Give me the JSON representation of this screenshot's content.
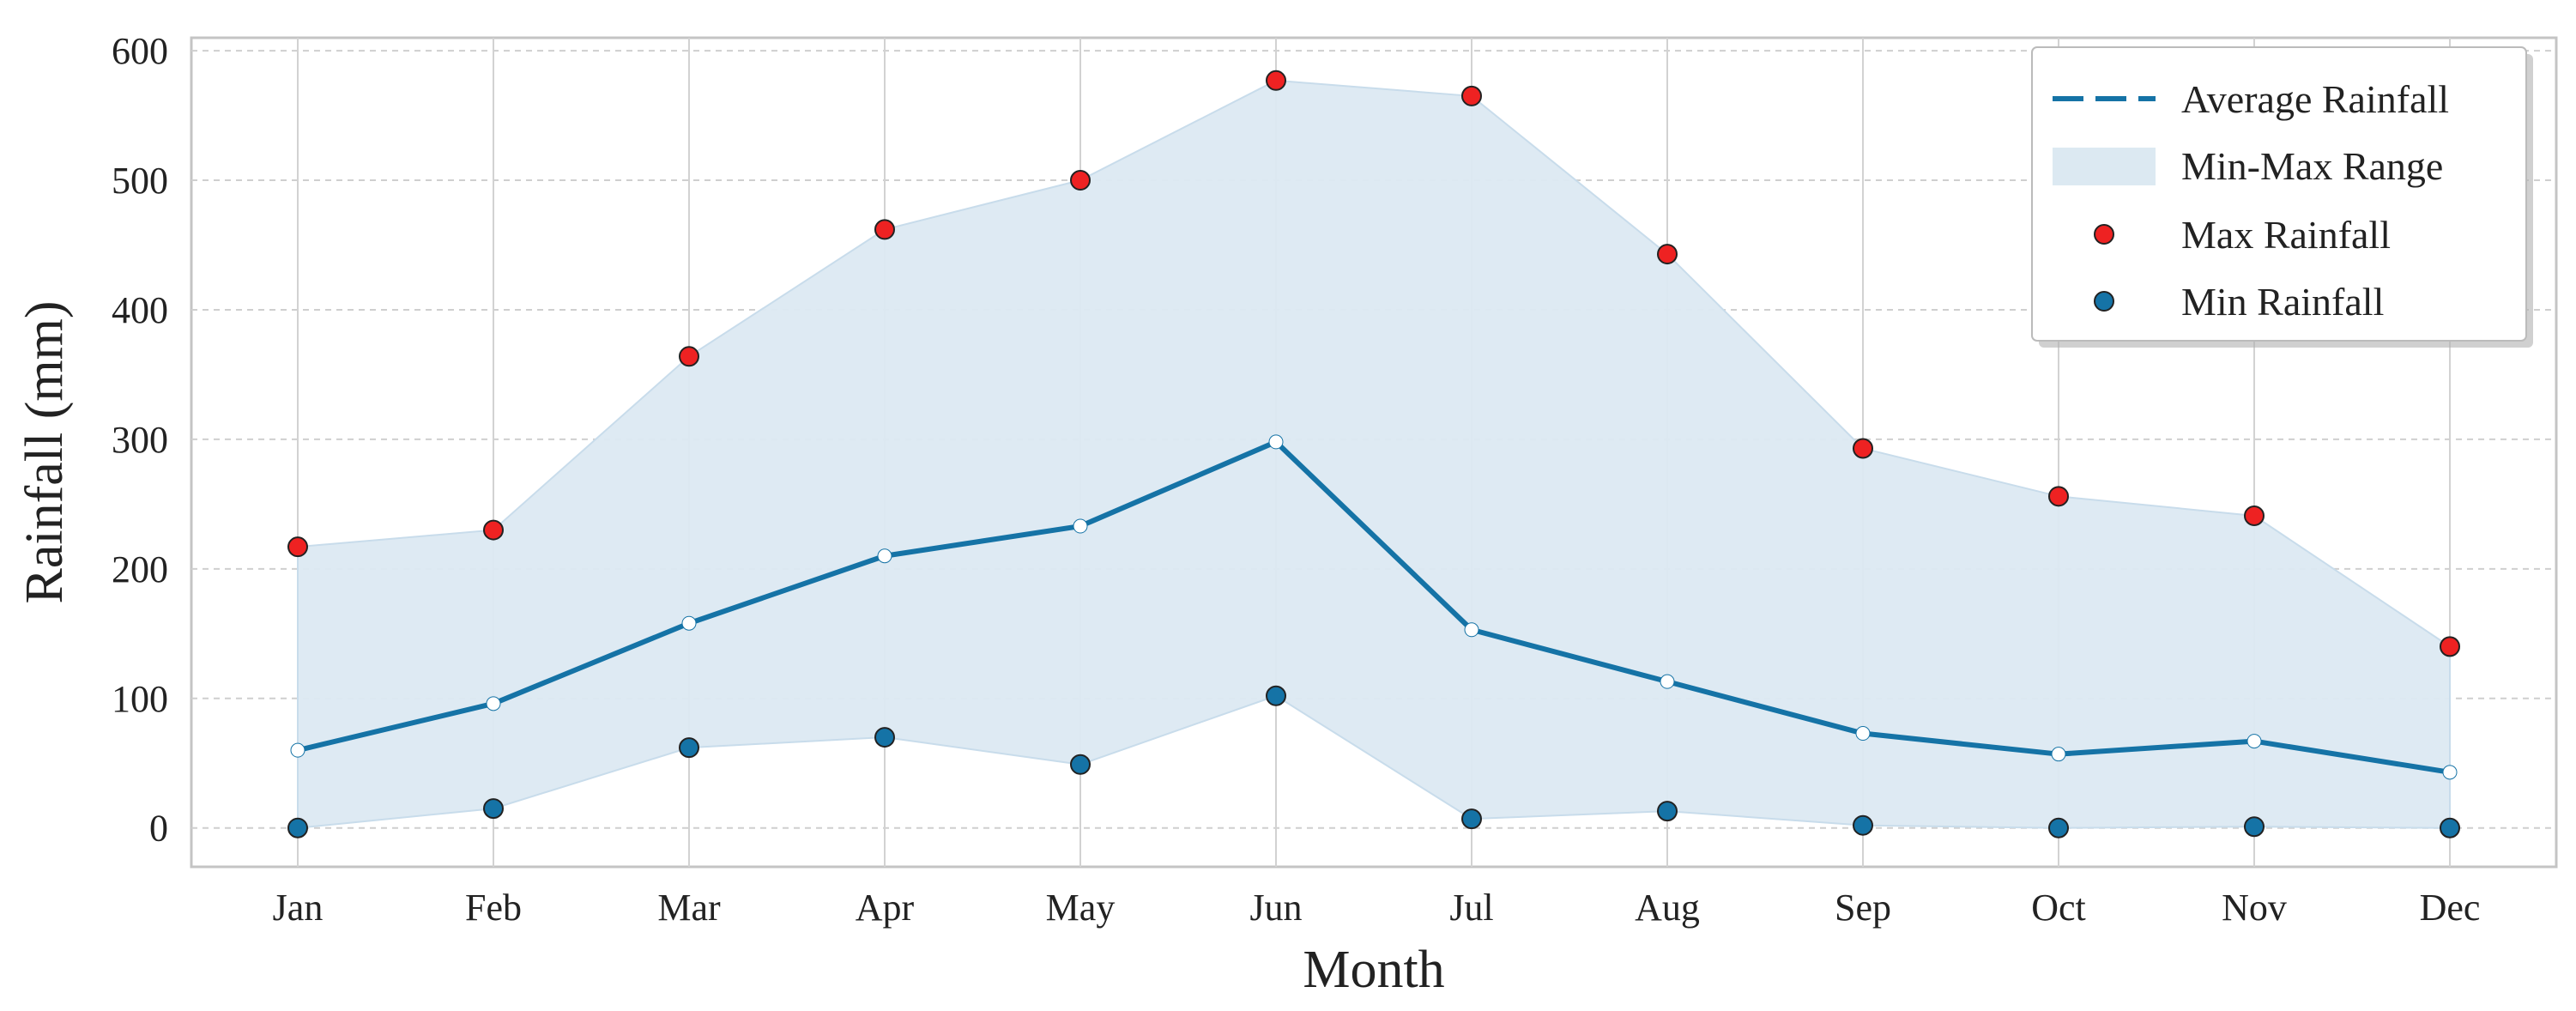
{
  "chart_data": {
    "type": "line",
    "title": "",
    "xlabel": "Month",
    "ylabel": "Rainfall (mm)",
    "categories": [
      "Jan",
      "Feb",
      "Mar",
      "Apr",
      "May",
      "Jun",
      "Jul",
      "Aug",
      "Sep",
      "Oct",
      "Nov",
      "Dec"
    ],
    "yticks": [
      0,
      100,
      200,
      300,
      400,
      500,
      600
    ],
    "ylim": [
      -30,
      610
    ],
    "grid": true,
    "legend_position": "top-right",
    "series": [
      {
        "name": "Average Rainfall",
        "kind": "line",
        "color": "#1573a6",
        "values": [
          60,
          96,
          158,
          210,
          233,
          298,
          153,
          113,
          73,
          57,
          67,
          43
        ]
      },
      {
        "name": "Min-Max Range",
        "kind": "band",
        "color": "#dce9f2"
      },
      {
        "name": "Max Rainfall",
        "kind": "scatter",
        "color": "#ee2222",
        "values": [
          217,
          230,
          364,
          462,
          500,
          577,
          565,
          443,
          293,
          256,
          241,
          140
        ]
      },
      {
        "name": "Min Rainfall",
        "kind": "scatter",
        "color": "#1573a6",
        "values": [
          0,
          15,
          62,
          70,
          49,
          102,
          7,
          13,
          2,
          0,
          1,
          0
        ]
      }
    ]
  }
}
